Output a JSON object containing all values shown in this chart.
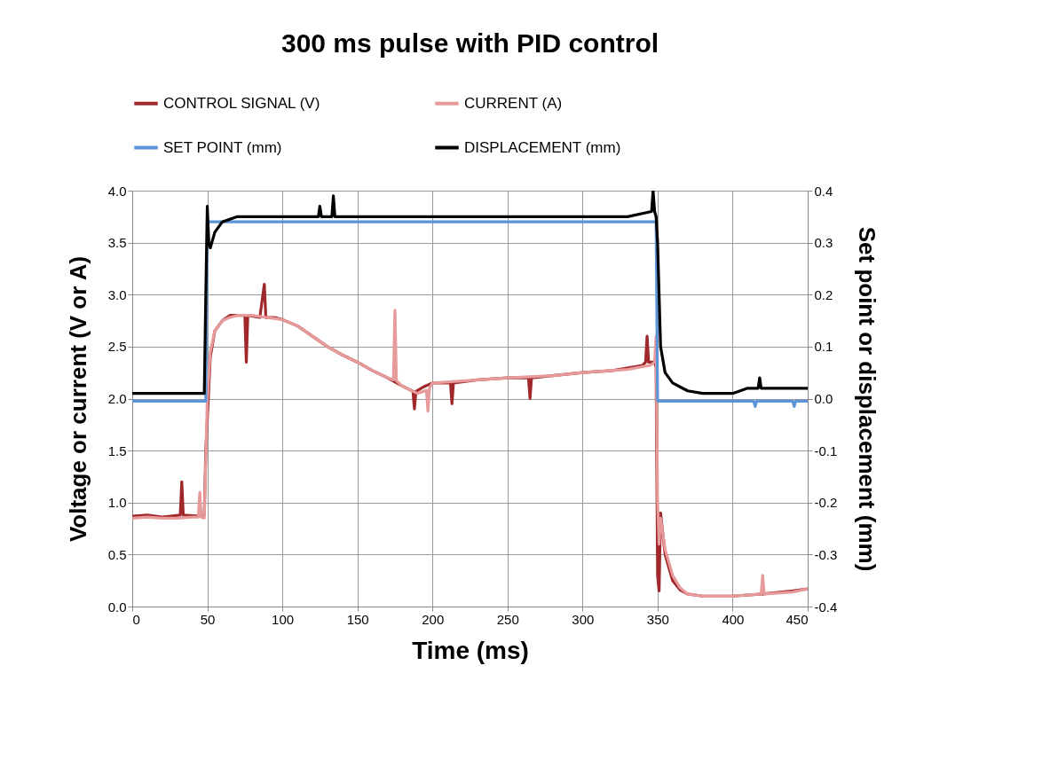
{
  "chart_data": {
    "type": "line",
    "title": "300 ms pulse with PID control",
    "xlabel": "Time (ms)",
    "ylabel": "Voltage or current (V or A)",
    "y2label": "Set point  or displacement  (mm)",
    "xlim": [
      0,
      450
    ],
    "xticks": [
      0,
      50,
      100,
      150,
      200,
      250,
      300,
      350,
      400,
      450
    ],
    "ylim": [
      0,
      4
    ],
    "yticks": [
      {
        "value": 0,
        "label": "0.0"
      },
      0.5,
      {
        "value": 1,
        "label": "1.0"
      },
      1.5,
      {
        "value": 2,
        "label": "2.0"
      },
      2.5,
      {
        "value": 3,
        "label": "3.0"
      },
      3.5,
      {
        "value": 4,
        "label": "4.0"
      }
    ],
    "y2lim": [
      -0.4,
      0.4
    ],
    "y2ticks": [
      -0.4,
      -0.3,
      -0.2,
      -0.1,
      {
        "value": 0,
        "label": "0.0"
      },
      0.1,
      0.2,
      0.3,
      0.4
    ],
    "grid": true,
    "legend": "top",
    "line_style": "solid",
    "marker": "none",
    "series": [
      {
        "name": "CONTROL SIGNAL (V)",
        "color": "#a0282b",
        "x": [
          0,
          10,
          20,
          32,
          33,
          34,
          45,
          48,
          49,
          50,
          51,
          52,
          55,
          60,
          65,
          70,
          75,
          76,
          77,
          85,
          88,
          89,
          95,
          100,
          110,
          120,
          130,
          140,
          150,
          160,
          170,
          180,
          187,
          188,
          189,
          195,
          200,
          212,
          213,
          214,
          230,
          250,
          264,
          265,
          266,
          280,
          300,
          320,
          340,
          342,
          343,
          344,
          348,
          349,
          350,
          351,
          352,
          355,
          360,
          365,
          370,
          380,
          400,
          420,
          440,
          450
        ],
        "values": [
          0.87,
          0.88,
          0.86,
          0.88,
          1.2,
          0.88,
          0.87,
          0.88,
          1.5,
          1.8,
          2.1,
          2.4,
          2.65,
          2.75,
          2.8,
          2.8,
          2.8,
          2.35,
          2.8,
          2.78,
          3.1,
          2.78,
          2.78,
          2.76,
          2.7,
          2.6,
          2.5,
          2.42,
          2.35,
          2.27,
          2.2,
          2.12,
          2.07,
          1.9,
          2.07,
          2.12,
          2.15,
          2.15,
          1.95,
          2.15,
          2.18,
          2.2,
          2.2,
          2.0,
          2.2,
          2.22,
          2.25,
          2.27,
          2.32,
          2.35,
          2.6,
          2.35,
          2.35,
          2.3,
          0.3,
          0.15,
          0.9,
          0.5,
          0.25,
          0.16,
          0.12,
          0.1,
          0.1,
          0.12,
          0.15,
          0.17
        ]
      },
      {
        "name": "CURRENT (A)",
        "color": "#e69a9a",
        "x": [
          0,
          10,
          20,
          30,
          40,
          44,
          45,
          46,
          48,
          49,
          50,
          52,
          55,
          60,
          65,
          70,
          80,
          90,
          100,
          110,
          120,
          130,
          140,
          150,
          160,
          170,
          174,
          175,
          176,
          180,
          190,
          196,
          197,
          198,
          200,
          220,
          250,
          280,
          300,
          330,
          345,
          348,
          349,
          350,
          351,
          352,
          355,
          360,
          365,
          370,
          380,
          400,
          419,
          420,
          421,
          440,
          450
        ],
        "values": [
          0.85,
          0.86,
          0.85,
          0.85,
          0.86,
          0.86,
          1.1,
          0.86,
          0.85,
          1.4,
          2.0,
          2.45,
          2.65,
          2.75,
          2.78,
          2.8,
          2.8,
          2.78,
          2.76,
          2.7,
          2.6,
          2.5,
          2.42,
          2.35,
          2.27,
          2.2,
          2.18,
          2.85,
          2.17,
          2.12,
          2.05,
          2.08,
          1.88,
          2.1,
          2.15,
          2.17,
          2.2,
          2.22,
          2.25,
          2.28,
          2.32,
          2.35,
          2.6,
          1.0,
          0.6,
          0.85,
          0.55,
          0.3,
          0.18,
          0.12,
          0.1,
          0.1,
          0.12,
          0.3,
          0.12,
          0.14,
          0.17
        ]
      },
      {
        "name": "SET POINT (mm)",
        "color": "#5b94d8",
        "axis": "y2",
        "x": [
          0,
          49,
          50,
          349,
          350,
          414,
          415,
          416,
          440,
          441,
          442,
          450
        ],
        "values": [
          -0.005,
          -0.005,
          0.34,
          0.34,
          -0.005,
          -0.005,
          -0.015,
          -0.005,
          -0.005,
          -0.015,
          -0.005,
          -0.005
        ]
      },
      {
        "name": "DISPLACEMENT (mm)",
        "color": "#000000",
        "axis": "y2",
        "x": [
          0,
          20,
          40,
          48,
          49,
          50,
          51,
          52,
          55,
          60,
          70,
          100,
          124,
          125,
          126,
          133,
          134,
          135,
          150,
          200,
          250,
          300,
          330,
          346,
          347,
          348,
          349,
          350,
          352,
          355,
          360,
          370,
          380,
          400,
          410,
          417,
          418,
          419,
          430,
          450
        ],
        "values": [
          0.01,
          0.01,
          0.01,
          0.01,
          0.2,
          0.37,
          0.3,
          0.29,
          0.32,
          0.34,
          0.35,
          0.35,
          0.35,
          0.37,
          0.35,
          0.35,
          0.39,
          0.35,
          0.35,
          0.35,
          0.35,
          0.35,
          0.35,
          0.36,
          0.4,
          0.36,
          0.35,
          0.3,
          0.1,
          0.05,
          0.03,
          0.015,
          0.01,
          0.01,
          0.02,
          0.02,
          0.04,
          0.02,
          0.02,
          0.02
        ]
      }
    ]
  }
}
